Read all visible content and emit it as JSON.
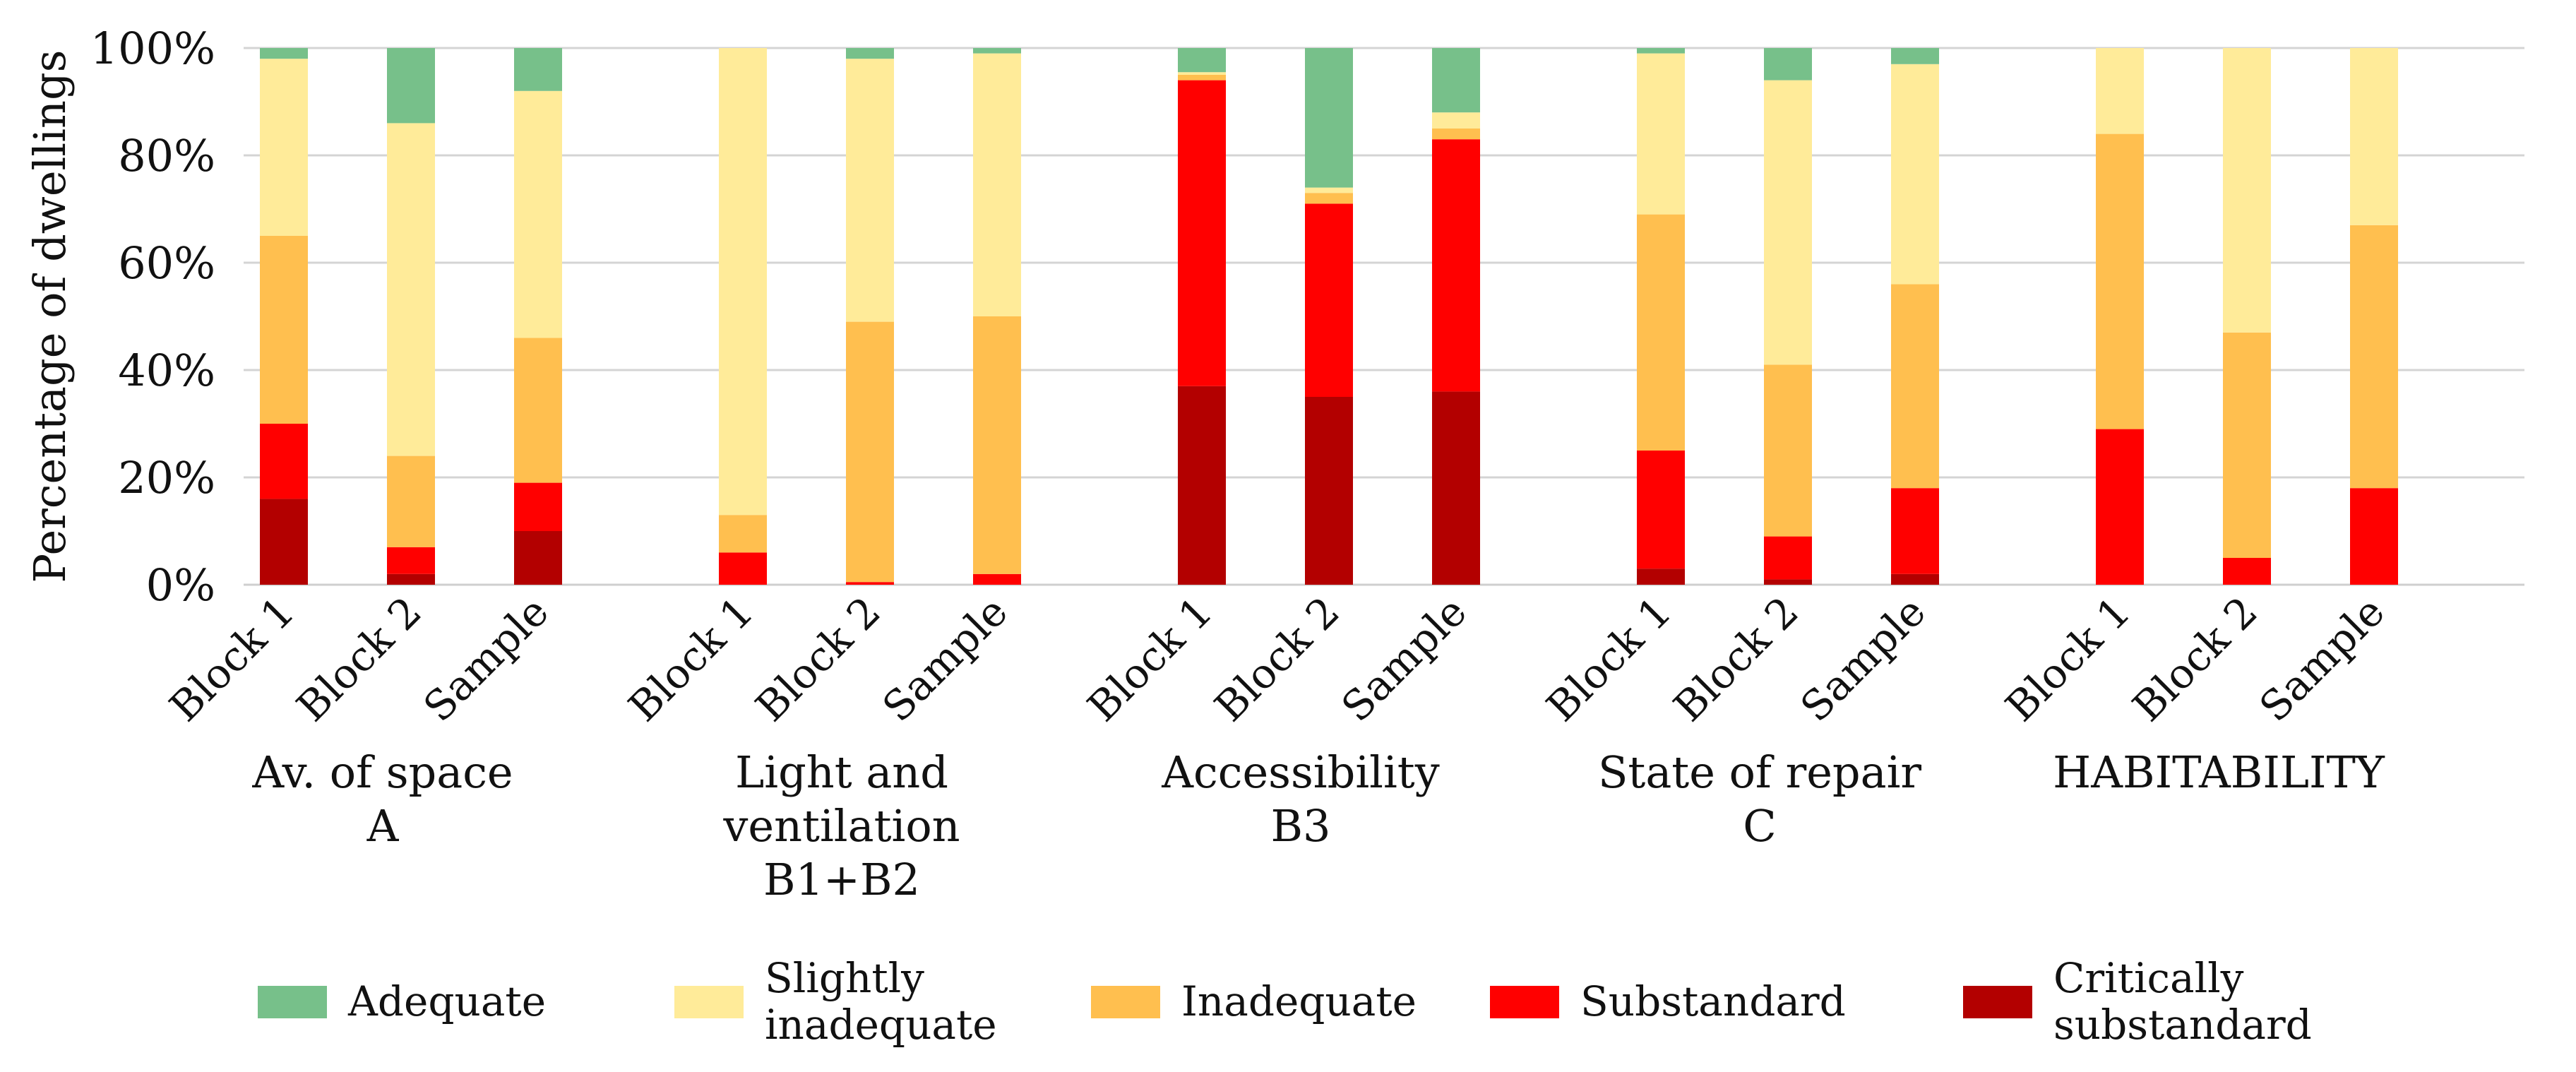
{
  "chart_data": {
    "type": "bar",
    "stacked": true,
    "ylabel": "Percentage of dwellings",
    "ylim": [
      0,
      100
    ],
    "yticks": [
      "0%",
      "20%",
      "40%",
      "60%",
      "80%",
      "100%"
    ],
    "grid": true,
    "legend_position": "bottom",
    "series_names": [
      "Critically substandard",
      "Substandard",
      "Inadequate",
      "Slightly inadequate",
      "Adequate"
    ],
    "colors": {
      "Critically substandard": "#b30000",
      "Substandard": "#ff0000",
      "Inadequate": "#ffbf4f",
      "Slightly inadequate": "#ffeb99",
      "Adequate": "#77c08a"
    },
    "groups": [
      {
        "label": [
          "Av. of space",
          "A"
        ],
        "bars": [
          {
            "category": "Block 1",
            "values": [
              16,
              14,
              35,
              33,
              2
            ]
          },
          {
            "category": "Block 2",
            "values": [
              2,
              5,
              17,
              62,
              14
            ]
          },
          {
            "category": "Sample",
            "values": [
              10,
              9,
              27,
              46,
              8
            ]
          }
        ]
      },
      {
        "label": [
          "Light and",
          "ventilation",
          "B1+B2"
        ],
        "bars": [
          {
            "category": "Block 1",
            "values": [
              0,
              6,
              7,
              87,
              0
            ]
          },
          {
            "category": "Block 2",
            "values": [
              0,
              0.5,
              48.5,
              49,
              2
            ]
          },
          {
            "category": "Sample",
            "values": [
              0,
              2,
              48,
              49,
              1
            ]
          }
        ]
      },
      {
        "label": [
          "Accessibility",
          "B3"
        ],
        "bars": [
          {
            "category": "Block 1",
            "values": [
              37,
              57,
              1,
              0.5,
              4.5
            ]
          },
          {
            "category": "Block 2",
            "values": [
              35,
              36,
              2,
              1,
              26
            ]
          },
          {
            "category": "Sample",
            "values": [
              36,
              47,
              2,
              3,
              12
            ]
          }
        ]
      },
      {
        "label": [
          "State of repair",
          "C"
        ],
        "bars": [
          {
            "category": "Block 1",
            "values": [
              3,
              22,
              44,
              30,
              1
            ]
          },
          {
            "category": "Block 2",
            "values": [
              1,
              8,
              32,
              53,
              6
            ]
          },
          {
            "category": "Sample",
            "values": [
              2,
              16,
              38,
              41,
              3
            ]
          }
        ]
      },
      {
        "label": [
          "HABITABILITY"
        ],
        "bars": [
          {
            "category": "Block 1",
            "values": [
              0,
              29,
              55,
              16,
              0
            ]
          },
          {
            "category": "Block 2",
            "values": [
              0,
              5,
              42,
              53,
              0
            ]
          },
          {
            "category": "Sample",
            "values": [
              0,
              18,
              49,
              33,
              0
            ]
          }
        ]
      }
    ],
    "legend": [
      {
        "series": "Adequate",
        "label": [
          "Adequate"
        ]
      },
      {
        "series": "Slightly inadequate",
        "label": [
          "Slightly",
          "inadequate"
        ]
      },
      {
        "series": "Inadequate",
        "label": [
          "Inadequate"
        ]
      },
      {
        "series": "Substandard",
        "label": [
          "Substandard"
        ]
      },
      {
        "series": "Critically substandard",
        "label": [
          "Critically",
          "substandard"
        ]
      }
    ]
  }
}
